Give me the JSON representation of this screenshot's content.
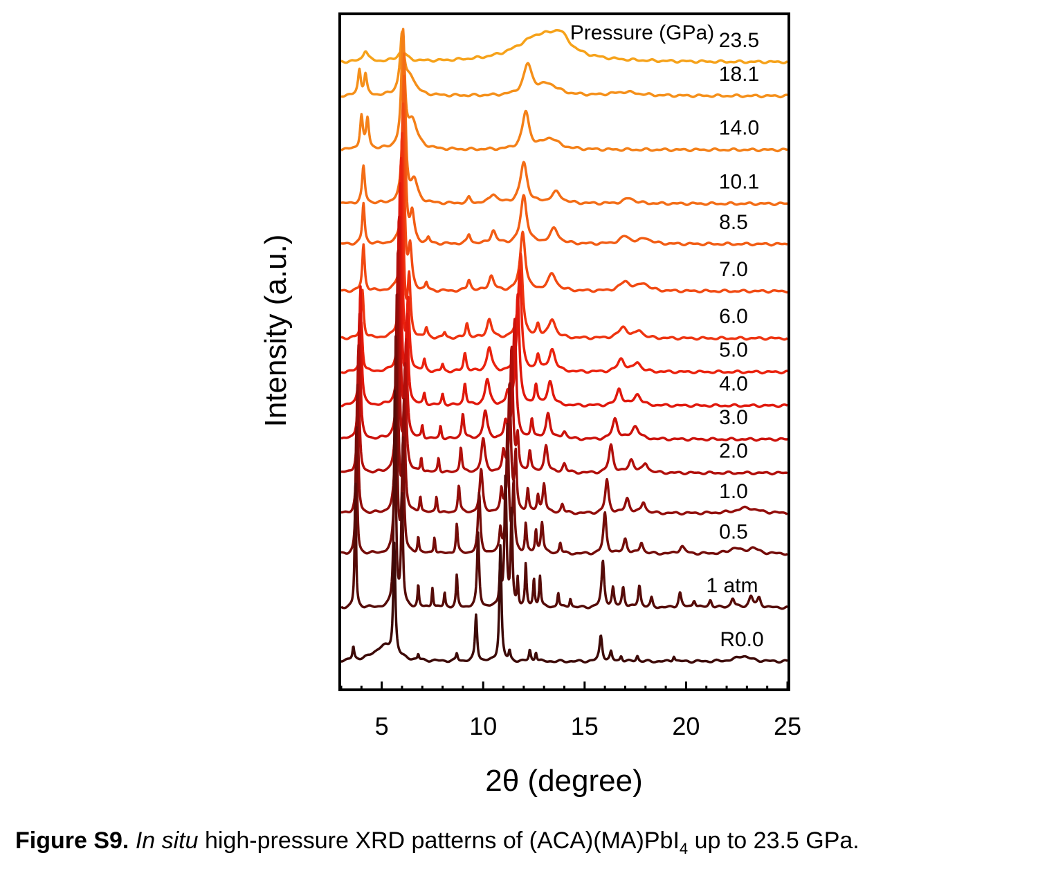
{
  "chart_data": {
    "type": "line",
    "title": "",
    "xlabel": "2θ (degree)",
    "ylabel": "Intensity (a.u.)",
    "xlim": [
      3,
      25
    ],
    "xticks": [
      5,
      10,
      15,
      20,
      25
    ],
    "yticks_shown": false,
    "grid": false,
    "legend_title": "Pressure (GPa)",
    "legend_placement": "right of each trace",
    "series": [
      {
        "label": "23.5",
        "color": "#f6a21a",
        "baseline": 0.93,
        "peaks": [
          [
            4.2,
            0.6,
            0.15
          ],
          [
            6.0,
            0.55,
            0.25
          ],
          [
            12.8,
            1.4,
            1.4
          ],
          [
            13.8,
            0.8,
            0.5
          ]
        ]
      },
      {
        "label": "18.1",
        "color": "#f5901a",
        "baseline": 0.88,
        "peaks": [
          [
            3.9,
            1.4,
            0.08
          ],
          [
            4.2,
            1.1,
            0.08
          ],
          [
            6.0,
            3.1,
            0.12
          ],
          [
            6.4,
            1.0,
            0.3
          ],
          [
            12.2,
            1.6,
            0.25
          ],
          [
            13.2,
            0.6,
            0.6
          ],
          [
            17.0,
            0.2,
            0.8
          ]
        ]
      },
      {
        "label": "14.0",
        "color": "#f48018",
        "baseline": 0.8,
        "peaks": [
          [
            4.0,
            1.8,
            0.08
          ],
          [
            4.3,
            1.6,
            0.08
          ],
          [
            6.05,
            6.0,
            0.1
          ],
          [
            6.5,
            1.5,
            0.3
          ],
          [
            12.1,
            2.0,
            0.2
          ],
          [
            13.3,
            0.6,
            0.5
          ]
        ]
      },
      {
        "label": "10.1",
        "color": "#f36d16",
        "baseline": 0.72,
        "peaks": [
          [
            4.1,
            2.0,
            0.08
          ],
          [
            6.1,
            8.0,
            0.09
          ],
          [
            6.6,
            1.2,
            0.2
          ],
          [
            9.3,
            0.3,
            0.1
          ],
          [
            10.5,
            0.5,
            0.2
          ],
          [
            12.0,
            2.2,
            0.2
          ],
          [
            13.6,
            0.6,
            0.3
          ],
          [
            17.2,
            0.3,
            0.3
          ]
        ]
      },
      {
        "label": "8.5",
        "color": "#f25d14",
        "baseline": 0.66,
        "peaks": [
          [
            4.1,
            2.2,
            0.07
          ],
          [
            6.1,
            9.0,
            0.08
          ],
          [
            6.5,
            1.6,
            0.12
          ],
          [
            7.3,
            0.3,
            0.08
          ],
          [
            9.3,
            0.5,
            0.1
          ],
          [
            10.5,
            0.7,
            0.15
          ],
          [
            12.0,
            2.6,
            0.18
          ],
          [
            13.5,
            0.8,
            0.25
          ],
          [
            17.0,
            0.4,
            0.3
          ],
          [
            18.0,
            0.3,
            0.3
          ]
        ]
      },
      {
        "label": "7.0",
        "color": "#f14a12",
        "baseline": 0.59,
        "peaks": [
          [
            4.1,
            2.5,
            0.07
          ],
          [
            6.05,
            10.0,
            0.08
          ],
          [
            6.4,
            2.2,
            0.1
          ],
          [
            7.2,
            0.4,
            0.07
          ],
          [
            9.3,
            0.6,
            0.1
          ],
          [
            10.4,
            0.8,
            0.15
          ],
          [
            11.95,
            3.2,
            0.15
          ],
          [
            13.4,
            0.9,
            0.25
          ],
          [
            17.0,
            0.5,
            0.3
          ],
          [
            17.9,
            0.4,
            0.3
          ]
        ]
      },
      {
        "label": "6.0",
        "color": "#ee3410",
        "baseline": 0.52,
        "peaks": [
          [
            4.05,
            2.6,
            0.07
          ],
          [
            6.0,
            11.0,
            0.08
          ],
          [
            6.35,
            3.0,
            0.08
          ],
          [
            7.2,
            0.5,
            0.07
          ],
          [
            8.1,
            0.3,
            0.07
          ],
          [
            9.2,
            0.8,
            0.08
          ],
          [
            10.3,
            1.0,
            0.14
          ],
          [
            11.85,
            4.6,
            0.12
          ],
          [
            12.7,
            0.7,
            0.1
          ],
          [
            13.4,
            1.0,
            0.2
          ],
          [
            16.9,
            0.6,
            0.25
          ],
          [
            17.7,
            0.4,
            0.2
          ]
        ]
      },
      {
        "label": "5.0",
        "color": "#ea220e",
        "baseline": 0.47,
        "peaks": [
          [
            4.0,
            2.7,
            0.065
          ],
          [
            5.95,
            11.5,
            0.075
          ],
          [
            6.3,
            3.5,
            0.08
          ],
          [
            7.1,
            0.6,
            0.06
          ],
          [
            8.0,
            0.4,
            0.06
          ],
          [
            9.1,
            1.0,
            0.08
          ],
          [
            10.3,
            1.3,
            0.14
          ],
          [
            11.8,
            5.5,
            0.11
          ],
          [
            12.7,
            0.9,
            0.1
          ],
          [
            13.4,
            1.2,
            0.18
          ],
          [
            16.8,
            0.7,
            0.2
          ],
          [
            17.6,
            0.5,
            0.2
          ]
        ]
      },
      {
        "label": "4.0",
        "color": "#e0180c",
        "baseline": 0.42,
        "peaks": [
          [
            3.95,
            6.5,
            0.06
          ],
          [
            5.9,
            12.0,
            0.07
          ],
          [
            6.25,
            4.5,
            0.07
          ],
          [
            7.1,
            0.6,
            0.06
          ],
          [
            8.0,
            0.6,
            0.06
          ],
          [
            9.1,
            1.2,
            0.07
          ],
          [
            10.2,
            1.4,
            0.13
          ],
          [
            11.2,
            0.6,
            0.08
          ],
          [
            11.7,
            6.0,
            0.1
          ],
          [
            12.6,
            1.1,
            0.08
          ],
          [
            13.3,
            1.3,
            0.15
          ],
          [
            16.7,
            0.9,
            0.15
          ],
          [
            17.6,
            0.6,
            0.2
          ]
        ]
      },
      {
        "label": "3.0",
        "color": "#cc120b",
        "baseline": 0.37,
        "peaks": [
          [
            3.9,
            6.8,
            0.06
          ],
          [
            5.85,
            12.0,
            0.07
          ],
          [
            6.2,
            5.0,
            0.07
          ],
          [
            7.0,
            0.7,
            0.05
          ],
          [
            7.9,
            0.7,
            0.05
          ],
          [
            9.0,
            1.4,
            0.07
          ],
          [
            10.1,
            1.5,
            0.12
          ],
          [
            11.1,
            0.8,
            0.08
          ],
          [
            11.55,
            6.5,
            0.09
          ],
          [
            12.4,
            1.1,
            0.07
          ],
          [
            13.2,
            1.4,
            0.12
          ],
          [
            14.0,
            0.4,
            0.12
          ],
          [
            16.5,
            1.1,
            0.15
          ],
          [
            17.5,
            0.7,
            0.2
          ]
        ]
      },
      {
        "label": "2.0",
        "color": "#b10f0b",
        "baseline": 0.32,
        "peaks": [
          [
            3.85,
            6.9,
            0.055
          ],
          [
            5.8,
            12.0,
            0.07
          ],
          [
            6.15,
            5.5,
            0.07
          ],
          [
            6.95,
            0.8,
            0.05
          ],
          [
            7.8,
            0.8,
            0.05
          ],
          [
            8.9,
            1.4,
            0.06
          ],
          [
            10.0,
            1.8,
            0.11
          ],
          [
            11.0,
            1.0,
            0.07
          ],
          [
            11.4,
            6.8,
            0.08
          ],
          [
            11.7,
            1.8,
            0.06
          ],
          [
            12.3,
            1.2,
            0.07
          ],
          [
            13.1,
            1.5,
            0.1
          ],
          [
            14.0,
            0.5,
            0.1
          ],
          [
            16.3,
            1.5,
            0.12
          ],
          [
            17.3,
            0.7,
            0.15
          ],
          [
            18.0,
            0.5,
            0.15
          ]
        ]
      },
      {
        "label": "1.0",
        "color": "#920d0a",
        "baseline": 0.26,
        "peaks": [
          [
            3.8,
            7.0,
            0.05
          ],
          [
            5.75,
            12.0,
            0.065
          ],
          [
            6.1,
            5.8,
            0.065
          ],
          [
            6.9,
            0.9,
            0.05
          ],
          [
            7.7,
            0.9,
            0.05
          ],
          [
            8.8,
            1.5,
            0.06
          ],
          [
            9.9,
            2.3,
            0.09
          ],
          [
            10.9,
            1.1,
            0.06
          ],
          [
            11.3,
            7.0,
            0.08
          ],
          [
            11.6,
            3.0,
            0.06
          ],
          [
            12.2,
            1.3,
            0.06
          ],
          [
            12.7,
            0.9,
            0.06
          ],
          [
            13.0,
            1.6,
            0.08
          ],
          [
            13.9,
            0.5,
            0.08
          ],
          [
            16.1,
            1.8,
            0.1
          ],
          [
            17.1,
            0.8,
            0.12
          ],
          [
            17.9,
            0.6,
            0.12
          ],
          [
            23.0,
            0.3,
            0.6
          ]
        ]
      },
      {
        "label": "0.5",
        "color": "#740c09",
        "baseline": 0.2,
        "peaks": [
          [
            3.75,
            7.0,
            0.045
          ],
          [
            5.7,
            12.0,
            0.06
          ],
          [
            6.05,
            6.0,
            0.06
          ],
          [
            6.8,
            0.9,
            0.045
          ],
          [
            7.6,
            0.9,
            0.045
          ],
          [
            8.7,
            1.6,
            0.05
          ],
          [
            9.8,
            3.2,
            0.07
          ],
          [
            10.85,
            1.2,
            0.06
          ],
          [
            11.2,
            7.0,
            0.07
          ],
          [
            11.5,
            3.6,
            0.06
          ],
          [
            12.1,
            1.6,
            0.05
          ],
          [
            12.6,
            1.2,
            0.05
          ],
          [
            12.9,
            1.7,
            0.07
          ],
          [
            13.8,
            0.6,
            0.06
          ],
          [
            16.0,
            2.2,
            0.09
          ],
          [
            17.0,
            0.8,
            0.1
          ],
          [
            17.8,
            0.6,
            0.1
          ],
          [
            19.8,
            0.4,
            0.15
          ],
          [
            22.4,
            0.3,
            0.3
          ],
          [
            23.3,
            0.3,
            0.3
          ]
        ]
      },
      {
        "label": "1 atm",
        "color": "#550b08",
        "baseline": 0.12,
        "peaks": [
          [
            3.7,
            7.0,
            0.04
          ],
          [
            5.65,
            12.0,
            0.055
          ],
          [
            6.0,
            6.0,
            0.055
          ],
          [
            6.8,
            1.2,
            0.04
          ],
          [
            7.5,
            1.1,
            0.04
          ],
          [
            8.1,
            0.8,
            0.04
          ],
          [
            8.7,
            1.7,
            0.045
          ],
          [
            9.75,
            4.0,
            0.06
          ],
          [
            10.85,
            2.4,
            0.05
          ],
          [
            11.1,
            7.0,
            0.06
          ],
          [
            11.4,
            5.2,
            0.05
          ],
          [
            11.7,
            1.5,
            0.04
          ],
          [
            12.1,
            2.3,
            0.045
          ],
          [
            12.5,
            1.5,
            0.045
          ],
          [
            12.8,
            1.7,
            0.05
          ],
          [
            13.7,
            0.8,
            0.05
          ],
          [
            14.3,
            0.5,
            0.05
          ],
          [
            15.9,
            2.5,
            0.08
          ],
          [
            16.4,
            1.0,
            0.06
          ],
          [
            16.9,
            1.1,
            0.07
          ],
          [
            17.7,
            1.2,
            0.07
          ],
          [
            18.3,
            0.5,
            0.06
          ],
          [
            19.7,
            0.8,
            0.08
          ],
          [
            20.4,
            0.4,
            0.08
          ],
          [
            21.2,
            0.4,
            0.08
          ],
          [
            22.3,
            0.5,
            0.1
          ],
          [
            23.2,
            0.6,
            0.12
          ],
          [
            23.6,
            0.5,
            0.1
          ]
        ]
      },
      {
        "label": "R0.0",
        "color": "#3d0a08",
        "baseline": 0.04,
        "peaks": [
          [
            3.6,
            0.7,
            0.05
          ],
          [
            5.1,
            0.8,
            0.6
          ],
          [
            5.62,
            6.0,
            0.06
          ],
          [
            6.8,
            0.3,
            0.04
          ],
          [
            8.7,
            0.4,
            0.05
          ],
          [
            9.65,
            2.5,
            0.06
          ],
          [
            10.85,
            6.3,
            0.06
          ],
          [
            11.3,
            0.5,
            0.05
          ],
          [
            12.3,
            0.6,
            0.05
          ],
          [
            12.6,
            0.5,
            0.05
          ],
          [
            15.8,
            1.4,
            0.08
          ],
          [
            16.3,
            0.5,
            0.06
          ],
          [
            16.8,
            0.3,
            0.06
          ],
          [
            17.6,
            0.3,
            0.06
          ],
          [
            19.4,
            0.3,
            0.06
          ],
          [
            22.8,
            0.3,
            0.4
          ]
        ]
      }
    ]
  },
  "caption": {
    "label": "Figure S9.",
    "italic": "In situ",
    "text_before_sub": " high-pressure XRD patterns of (ACA)(MA)PbI",
    "sub": "4",
    "text_after_sub": " up to 23.5 GPa."
  }
}
